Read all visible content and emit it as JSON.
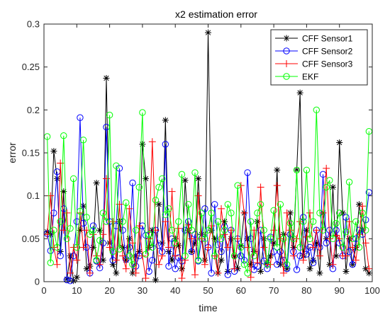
{
  "chart_data": {
    "type": "line",
    "title": "x2 estimation error",
    "xlabel": "time",
    "ylabel": "error",
    "xlim": [
      0,
      100
    ],
    "ylim": [
      0,
      0.3
    ],
    "xticks": [
      0,
      10,
      20,
      30,
      40,
      50,
      60,
      70,
      80,
      90,
      100
    ],
    "yticks": [
      0,
      0.05,
      0.1,
      0.15,
      0.2,
      0.25,
      0.3
    ],
    "xtick_labels": [
      "0",
      "10",
      "20",
      "30",
      "40",
      "50",
      "60",
      "70",
      "80",
      "90",
      "100"
    ],
    "ytick_labels": [
      "0",
      "0.05",
      "0.1",
      "0.15",
      "0.2",
      "0.25",
      "0.3"
    ],
    "legend_position": "top-right",
    "grid": false,
    "x": [
      1,
      2,
      3,
      4,
      5,
      6,
      7,
      8,
      9,
      10,
      11,
      12,
      13,
      14,
      15,
      16,
      17,
      18,
      19,
      20,
      21,
      22,
      23,
      24,
      25,
      26,
      27,
      28,
      29,
      30,
      31,
      32,
      33,
      34,
      35,
      36,
      37,
      38,
      39,
      40,
      41,
      42,
      43,
      44,
      45,
      46,
      47,
      48,
      49,
      50,
      51,
      52,
      53,
      54,
      55,
      56,
      57,
      58,
      59,
      60,
      61,
      62,
      63,
      64,
      65,
      66,
      67,
      68,
      69,
      70,
      71,
      72,
      73,
      74,
      75,
      76,
      77,
      78,
      79,
      80,
      81,
      82,
      83,
      84,
      85,
      86,
      87,
      88,
      89,
      90,
      91,
      92,
      93,
      94,
      95,
      96,
      97,
      98,
      99
    ],
    "series": [
      {
        "name": "CFF Sensor1",
        "color": "#000000",
        "marker": "asterisk",
        "values": [
          0.058,
          0.055,
          0.152,
          0.12,
          0.035,
          0.105,
          0.003,
          0.03,
          0.001,
          0.005,
          0.06,
          0.088,
          0.015,
          0.018,
          0.04,
          0.115,
          0.06,
          0.025,
          0.237,
          0.045,
          0.02,
          0.01,
          0.07,
          0.04,
          0.025,
          0.05,
          0.01,
          0.03,
          0.035,
          0.16,
          0.12,
          0.04,
          0.06,
          0.002,
          0.09,
          0.045,
          0.188,
          0.035,
          0.025,
          0.05,
          0.042,
          0.015,
          0.118,
          0.06,
          0.035,
          0.045,
          0.12,
          0.055,
          0.025,
          0.29,
          0.06,
          0.05,
          0.01,
          0.025,
          0.07,
          0.012,
          0.05,
          0.03,
          0.015,
          0.042,
          0.08,
          0.05,
          0.02,
          0.035,
          0.07,
          0.012,
          0.05,
          0.022,
          0.03,
          0.045,
          0.13,
          0.02,
          0.055,
          0.015,
          0.08,
          0.04,
          0.13,
          0.22,
          0.03,
          0.06,
          0.015,
          0.025,
          0.045,
          0.01,
          0.08,
          0.05,
          0.02,
          0.11,
          0.03,
          0.162,
          0.08,
          0.012,
          0.05,
          0.02,
          0.04,
          0.09,
          0.06,
          0.015,
          0.01
        ]
      },
      {
        "name": "CFF Sensor2",
        "color": "#0000ff",
        "marker": "circle",
        "values": [
          0.056,
          0.036,
          0.08,
          0.128,
          0.03,
          0.085,
          0.002,
          0.001,
          0.03,
          0.07,
          0.191,
          0.068,
          0.04,
          0.01,
          0.065,
          0.024,
          0.016,
          0.045,
          0.18,
          0.07,
          0.025,
          0.065,
          0.132,
          0.06,
          0.026,
          0.04,
          0.115,
          0.018,
          0.03,
          0.065,
          0.054,
          0.012,
          0.025,
          0.06,
          0.042,
          0.035,
          0.16,
          0.018,
          0.05,
          0.015,
          0.028,
          0.024,
          0.06,
          0.07,
          0.035,
          0.055,
          0.024,
          0.05,
          0.085,
          0.04,
          0.01,
          0.09,
          0.043,
          0.035,
          0.064,
          0.008,
          0.06,
          0.012,
          0.05,
          0.03,
          0.025,
          0.127,
          0.05,
          0.014,
          0.018,
          0.06,
          0.024,
          0.015,
          0.052,
          0.035,
          0.02,
          0.035,
          0.025,
          0.015,
          0.055,
          0.035,
          0.014,
          0.03,
          0.075,
          0.032,
          0.04,
          0.022,
          0.06,
          0.04,
          0.125,
          0.045,
          0.06,
          0.015,
          0.06,
          0.045,
          0.03,
          0.075,
          0.035,
          0.02,
          0.05,
          0.06,
          0.055,
          0.072,
          0.104
        ]
      },
      {
        "name": "CFF Sensor3",
        "color": "#ff0000",
        "marker": "plus",
        "values": [
          0.055,
          0.1,
          0.04,
          0.02,
          0.138,
          0.06,
          0.08,
          0.01,
          0.04,
          0.025,
          0.08,
          0.04,
          0.06,
          0.01,
          0.055,
          0.03,
          0.02,
          0.055,
          0.12,
          0.04,
          0.07,
          0.025,
          0.09,
          0.03,
          0.015,
          0.085,
          0.045,
          0.01,
          0.065,
          0.03,
          0.004,
          0.05,
          0.163,
          0.06,
          0.02,
          0.03,
          0.07,
          0.04,
          0.105,
          0.03,
          0.062,
          0.004,
          0.025,
          0.066,
          0.05,
          0.008,
          0.1,
          0.05,
          0.02,
          0.04,
          0.065,
          0.03,
          0.01,
          0.085,
          0.055,
          0.04,
          0.06,
          0.015,
          0.05,
          0.112,
          0.08,
          0.04,
          0.005,
          0.06,
          0.022,
          0.11,
          0.04,
          0.02,
          0.02,
          0.06,
          0.112,
          0.05,
          0.01,
          0.08,
          0.06,
          0.03,
          0.05,
          0.07,
          0.025,
          0.052,
          0.08,
          0.04,
          0.06,
          0.03,
          0.08,
          0.132,
          0.05,
          0.02,
          0.054,
          0.05,
          0.03,
          0.03,
          0.07,
          0.04,
          0.025,
          0.055,
          0.088,
          0.045,
          0.015
        ]
      },
      {
        "name": "EKF",
        "color": "#00ff00",
        "marker": "circle",
        "values": [
          0.169,
          0.022,
          0.06,
          0.04,
          0.07,
          0.17,
          0.05,
          0.062,
          0.12,
          0.04,
          0.082,
          0.165,
          0.075,
          0.055,
          0.06,
          0.025,
          0.048,
          0.08,
          0.07,
          0.194,
          0.035,
          0.135,
          0.038,
          0.07,
          0.092,
          0.03,
          0.02,
          0.06,
          0.11,
          0.197,
          0.032,
          0.055,
          0.04,
          0.095,
          0.11,
          0.12,
          0.078,
          0.085,
          0.06,
          0.045,
          0.07,
          0.125,
          0.03,
          0.09,
          0.06,
          0.127,
          0.025,
          0.08,
          0.05,
          0.06,
          0.08,
          0.03,
          0.07,
          0.05,
          0.06,
          0.09,
          0.08,
          0.03,
          0.112,
          0.04,
          0.02,
          0.01,
          0.07,
          0.03,
          0.08,
          0.09,
          0.06,
          0.02,
          0.05,
          0.083,
          0.04,
          0.09,
          0.05,
          0.02,
          0.068,
          0.05,
          0.13,
          0.04,
          0.07,
          0.13,
          0.05,
          0.07,
          0.2,
          0.08,
          0.06,
          0.11,
          0.118,
          0.05,
          0.068,
          0.08,
          0.04,
          0.058,
          0.116,
          0.05,
          0.07,
          0.04,
          0.08,
          0.06,
          0.175
        ]
      }
    ]
  }
}
